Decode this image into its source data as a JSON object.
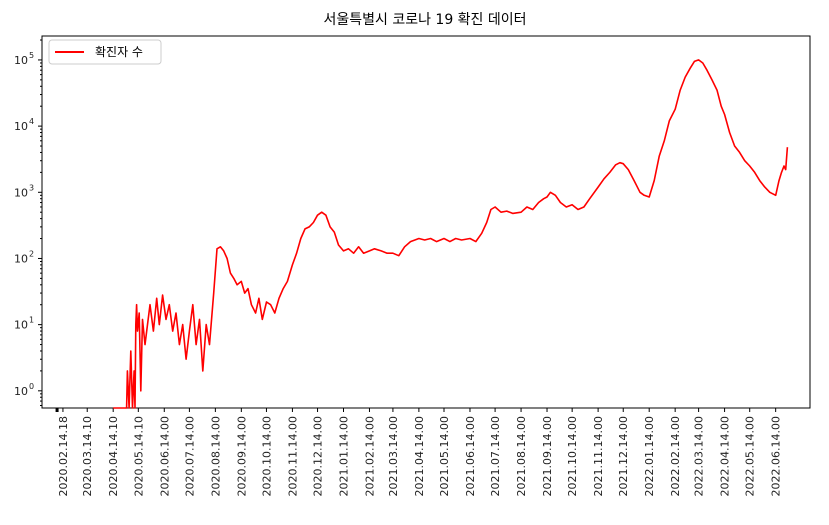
{
  "chart_data": {
    "type": "line",
    "title": "서울특별시 코로나 19 확진 데이터",
    "xlabel": "",
    "ylabel": "",
    "y_scale": "log",
    "ylim": [
      0.55,
      230000
    ],
    "y_ticks": [
      {
        "value": 1,
        "base": "10",
        "exp": "0"
      },
      {
        "value": 10,
        "base": "10",
        "exp": "1"
      },
      {
        "value": 100,
        "base": "10",
        "exp": "2"
      },
      {
        "value": 1000,
        "base": "10",
        "exp": "3"
      },
      {
        "value": 10000,
        "base": "10",
        "exp": "4"
      },
      {
        "value": 100000,
        "base": "10",
        "exp": "5"
      }
    ],
    "x_ticks": [
      "2020.02.14.18",
      "2020.03.14.10",
      "2020.04.14.10",
      "2020.05.14.10",
      "2020.06.14.00",
      "2020.07.14.00",
      "2020.08.14.00",
      "2020.09.14.00",
      "2020.10.14.00",
      "2020.11.14.00",
      "2020.12.14.00",
      "2021.01.14.00",
      "2021.02.14.00",
      "2021.03.14.00",
      "2021.04.14.00",
      "2021.05.14.00",
      "2021.06.14.00",
      "2021.07.14.00",
      "2021.08.14.00",
      "2021.09.14.00",
      "2021.10.14.00",
      "2021.11.14.00",
      "2021.12.14.00",
      "2022.01.14.00",
      "2022.02.14.00",
      "2022.03.14.00",
      "2022.04.14.00",
      "2022.05.14.00",
      "2022.06.14.00"
    ],
    "legend_position": "top-left",
    "grid": false,
    "series": [
      {
        "name": "확진자 수",
        "color": "#ff0000",
        "points": [
          [
            "2020.04.14.10",
            0.3
          ],
          [
            "2020.04.30",
            0.3
          ],
          [
            "2020.05.01",
            2
          ],
          [
            "2020.05.03",
            0.4
          ],
          [
            "2020.05.05",
            4
          ],
          [
            "2020.05.07",
            0.5
          ],
          [
            "2020.05.09",
            2
          ],
          [
            "2020.05.10",
            0.4
          ],
          [
            "2020.05.11",
            10
          ],
          [
            "2020.05.12",
            20
          ],
          [
            "2020.05.13",
            8
          ],
          [
            "2020.05.15",
            15
          ],
          [
            "2020.05.17",
            1
          ],
          [
            "2020.05.19",
            12
          ],
          [
            "2020.05.22",
            5
          ],
          [
            "2020.05.25",
            10
          ],
          [
            "2020.05.28",
            20
          ],
          [
            "2020.06.01",
            8
          ],
          [
            "2020.06.05",
            25
          ],
          [
            "2020.06.08",
            10
          ],
          [
            "2020.06.12",
            28
          ],
          [
            "2020.06.16",
            12
          ],
          [
            "2020.06.20",
            20
          ],
          [
            "2020.06.24",
            8
          ],
          [
            "2020.06.28",
            15
          ],
          [
            "2020.07.02",
            5
          ],
          [
            "2020.07.06",
            10
          ],
          [
            "2020.07.10",
            3
          ],
          [
            "2020.07.14.00",
            8
          ],
          [
            "2020.07.18",
            20
          ],
          [
            "2020.07.22",
            5
          ],
          [
            "2020.07.26",
            12
          ],
          [
            "2020.07.30",
            2
          ],
          [
            "2020.08.03",
            10
          ],
          [
            "2020.08.07",
            5
          ],
          [
            "2020.08.12",
            30
          ],
          [
            "2020.08.16",
            140
          ],
          [
            "2020.08.20",
            150
          ],
          [
            "2020.08.24",
            130
          ],
          [
            "2020.08.28",
            100
          ],
          [
            "2020.09.01",
            60
          ],
          [
            "2020.09.05",
            50
          ],
          [
            "2020.09.09",
            40
          ],
          [
            "2020.09.14.00",
            45
          ],
          [
            "2020.09.18",
            30
          ],
          [
            "2020.09.22",
            35
          ],
          [
            "2020.09.26",
            20
          ],
          [
            "2020.10.01",
            15
          ],
          [
            "2020.10.05",
            25
          ],
          [
            "2020.10.09",
            12
          ],
          [
            "2020.10.14.00",
            22
          ],
          [
            "2020.10.19",
            20
          ],
          [
            "2020.10.24",
            15
          ],
          [
            "2020.10.29",
            25
          ],
          [
            "2020.11.03",
            35
          ],
          [
            "2020.11.08",
            45
          ],
          [
            "2020.11.14.00",
            80
          ],
          [
            "2020.11.19",
            120
          ],
          [
            "2020.11.24",
            200
          ],
          [
            "2020.11.29",
            280
          ],
          [
            "2020.12.04",
            300
          ],
          [
            "2020.12.09",
            350
          ],
          [
            "2020.12.14.00",
            450
          ],
          [
            "2020.12.19",
            500
          ],
          [
            "2020.12.24",
            450
          ],
          [
            "2020.12.29",
            300
          ],
          [
            "2021.01.03",
            250
          ],
          [
            "2021.01.08",
            160
          ],
          [
            "2021.01.14.00",
            130
          ],
          [
            "2021.01.20",
            140
          ],
          [
            "2021.01.26",
            120
          ],
          [
            "2021.02.01",
            150
          ],
          [
            "2021.02.07",
            120
          ],
          [
            "2021.02.14.00",
            130
          ],
          [
            "2021.02.20",
            140
          ],
          [
            "2021.02.28",
            130
          ],
          [
            "2021.03.07",
            120
          ],
          [
            "2021.03.14.00",
            120
          ],
          [
            "2021.03.21",
            110
          ],
          [
            "2021.03.28",
            150
          ],
          [
            "2021.04.04",
            180
          ],
          [
            "2021.04.14.00",
            200
          ],
          [
            "2021.04.21",
            190
          ],
          [
            "2021.04.28",
            200
          ],
          [
            "2021.05.05",
            180
          ],
          [
            "2021.05.14.00",
            200
          ],
          [
            "2021.05.21",
            180
          ],
          [
            "2021.05.28",
            200
          ],
          [
            "2021.06.04",
            190
          ],
          [
            "2021.06.14.00",
            200
          ],
          [
            "2021.06.21",
            180
          ],
          [
            "2021.06.28",
            240
          ],
          [
            "2021.07.04",
            350
          ],
          [
            "2021.07.09",
            550
          ],
          [
            "2021.07.14.00",
            600
          ],
          [
            "2021.07.21",
            500
          ],
          [
            "2021.07.28",
            520
          ],
          [
            "2021.08.04",
            480
          ],
          [
            "2021.08.14.00",
            500
          ],
          [
            "2021.08.21",
            600
          ],
          [
            "2021.08.28",
            550
          ],
          [
            "2021.09.04",
            700
          ],
          [
            "2021.09.10",
            800
          ],
          [
            "2021.09.14.00",
            850
          ],
          [
            "2021.09.18",
            1000
          ],
          [
            "2021.09.24",
            900
          ],
          [
            "2021.09.30",
            700
          ],
          [
            "2021.10.07",
            600
          ],
          [
            "2021.10.14.00",
            650
          ],
          [
            "2021.10.21",
            550
          ],
          [
            "2021.10.28",
            600
          ],
          [
            "2021.11.04",
            800
          ],
          [
            "2021.11.14.00",
            1200
          ],
          [
            "2021.11.21",
            1600
          ],
          [
            "2021.11.28",
            2000
          ],
          [
            "2021.12.05",
            2600
          ],
          [
            "2021.12.10",
            2800
          ],
          [
            "2021.12.14.00",
            2700
          ],
          [
            "2021.12.20",
            2200
          ],
          [
            "2021.12.27",
            1500
          ],
          [
            "2022.01.03",
            1000
          ],
          [
            "2022.01.08",
            900
          ],
          [
            "2022.01.14.00",
            850
          ],
          [
            "2022.01.20",
            1500
          ],
          [
            "2022.01.26",
            3500
          ],
          [
            "2022.02.01",
            6000
          ],
          [
            "2022.02.07",
            12000
          ],
          [
            "2022.02.14.00",
            18000
          ],
          [
            "2022.02.20",
            35000
          ],
          [
            "2022.02.26",
            55000
          ],
          [
            "2022.03.04",
            75000
          ],
          [
            "2022.03.09",
            95000
          ],
          [
            "2022.03.14.00",
            100000
          ],
          [
            "2022.03.19",
            90000
          ],
          [
            "2022.03.24",
            70000
          ],
          [
            "2022.03.30",
            50000
          ],
          [
            "2022.04.05",
            35000
          ],
          [
            "2022.04.10",
            20000
          ],
          [
            "2022.04.14.00",
            15000
          ],
          [
            "2022.04.20",
            8000
          ],
          [
            "2022.04.26",
            5000
          ],
          [
            "2022.05.02",
            4000
          ],
          [
            "2022.05.08",
            3000
          ],
          [
            "2022.05.14.00",
            2500
          ],
          [
            "2022.05.20",
            2000
          ],
          [
            "2022.05.26",
            1500
          ],
          [
            "2022.06.01",
            1200
          ],
          [
            "2022.06.07",
            1000
          ],
          [
            "2022.06.14.00",
            900
          ],
          [
            "2022.06.18",
            1500
          ],
          [
            "2022.06.21",
            2000
          ],
          [
            "2022.06.24",
            2500
          ],
          [
            "2022.06.26",
            2200
          ],
          [
            "2022.06.28",
            4800
          ]
        ]
      }
    ]
  }
}
